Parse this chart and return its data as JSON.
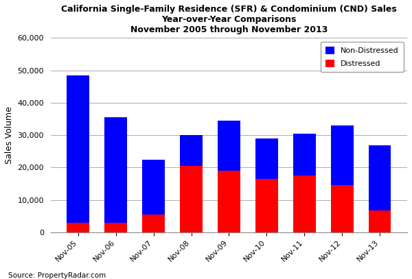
{
  "categories": [
    "Nov-05",
    "Nov-06",
    "Nov-07",
    "Nov-08",
    "Nov-09",
    "Nov-10",
    "Nov-11",
    "Nov-12",
    "Nov-13"
  ],
  "non_distressed": [
    45500,
    32500,
    17000,
    9500,
    15500,
    12500,
    13000,
    18500,
    20000
  ],
  "distressed": [
    3000,
    3000,
    5500,
    20500,
    19000,
    16500,
    17500,
    14500,
    6800
  ],
  "non_distressed_color": "#0000FF",
  "distressed_color": "#FF0000",
  "title_line1": "California Single-Family Residence (SFR) & Condominium (CND) Sales",
  "title_line2": "Year-over-Year Comparisons",
  "title_line3": "November 2005 through November 2013",
  "ylabel": "Sales Volume",
  "ylim": [
    0,
    60000
  ],
  "yticks": [
    0,
    10000,
    20000,
    30000,
    40000,
    50000,
    60000
  ],
  "source": "Source: PropertyRadar.com",
  "legend_labels": [
    "Non-Distressed",
    "Distressed"
  ],
  "background_color": "#FFFFFF",
  "grid_color": "#AAAAAA"
}
